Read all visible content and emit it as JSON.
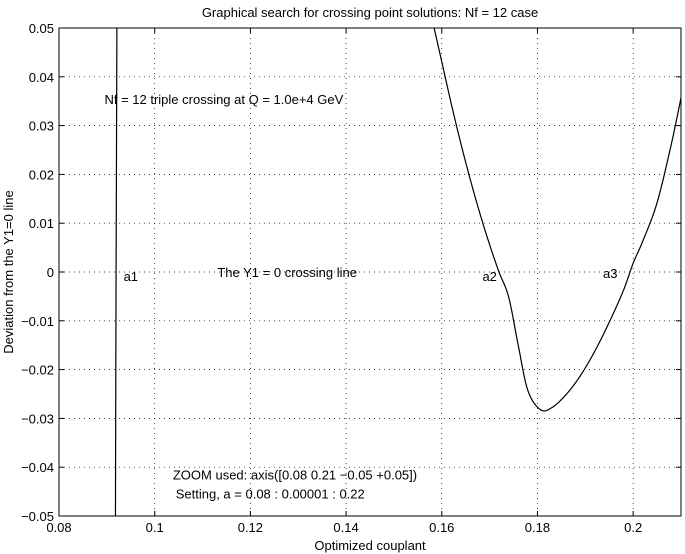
{
  "chart_data": {
    "type": "line",
    "title": "Graphical search for crossing point solutions: Nf = 12 case",
    "xlabel": "Optimized couplant",
    "ylabel": "Deviation from the Y1=0 line",
    "xlim": [
      0.08,
      0.21
    ],
    "ylim": [
      -0.05,
      0.05
    ],
    "xticks": [
      0.08,
      0.1,
      0.12,
      0.14,
      0.16,
      0.18,
      0.2
    ],
    "xtick_labels": [
      "0.08",
      "0.1",
      "0.12",
      "0.14",
      "0.16",
      "0.18",
      "0.2"
    ],
    "yticks": [
      -0.05,
      -0.04,
      -0.03,
      -0.02,
      -0.01,
      0,
      0.01,
      0.02,
      0.03,
      0.04,
      0.05
    ],
    "ytick_labels": [
      "−0.05",
      "−0.04",
      "−0.03",
      "−0.02",
      "−0.01",
      "0",
      "0.01",
      "0.02",
      "0.03",
      "0.04",
      "0.05"
    ],
    "grid": true,
    "line_color": "#000000",
    "series": [
      {
        "x": [
          0.0918,
          0.0919,
          0.092,
          0.0921
        ],
        "y": [
          -0.05,
          -0.01,
          0.02,
          0.05
        ]
      },
      {
        "x": [
          0.1584,
          0.16,
          0.162,
          0.164,
          0.166,
          0.168,
          0.17,
          0.172,
          0.174,
          0.176,
          0.178,
          0.1806,
          0.183,
          0.186,
          0.189,
          0.192,
          0.195,
          0.198,
          0.2,
          0.202,
          0.205,
          0.208,
          0.21
        ],
        "y": [
          0.05,
          0.0431,
          0.0344,
          0.0263,
          0.0188,
          0.0119,
          0.0056,
          -0.0001,
          -0.0052,
          -0.0151,
          -0.0243,
          -0.0282,
          -0.0278,
          -0.0251,
          -0.0212,
          -0.0162,
          -0.0103,
          -0.0037,
          0.0018,
          0.0063,
          0.0142,
          0.0263,
          0.0357
        ]
      }
    ],
    "annotations": [
      {
        "text": "Nf = 12 triple crossing at Q = 1.0e+4 GeV",
        "x": 0.0895,
        "y": 0.0355
      },
      {
        "text": "a1",
        "x": 0.0935,
        "y": -0.0008
      },
      {
        "text": "The Y1 = 0 crossing line",
        "x": 0.1131,
        "y": 0.0
      },
      {
        "text": "a2",
        "x": 0.1685,
        "y": -0.0008
      },
      {
        "text": "a3",
        "x": 0.1937,
        "y": -0.0002
      },
      {
        "text": "ZOOM used: axis([0.08 0.21 −0.05 +0.05])",
        "x": 0.1038,
        "y": -0.0415
      },
      {
        "text": "Setting, a = 0.08 : 0.00001 : 0.22",
        "x": 0.1044,
        "y": -0.0454
      }
    ]
  }
}
